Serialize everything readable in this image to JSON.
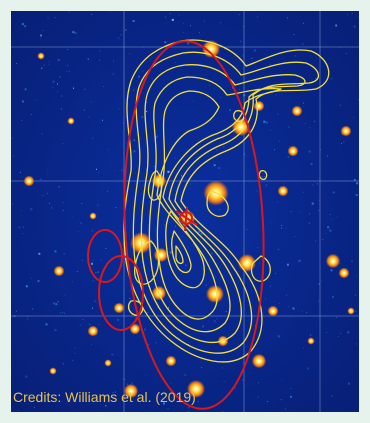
{
  "image": {
    "description_icon": "radio-contour-overlay",
    "colors": {
      "sky": "#0a2a8f",
      "sky_deep": "#061b6b",
      "grid": "#9fb4e6",
      "contours": "#f2df3c",
      "ellipses": "#d8181c",
      "sources": "#f28a1a",
      "credit_text": "#e8c24a"
    }
  },
  "credit": {
    "text": "Credits: Williams et al. (2019)"
  }
}
